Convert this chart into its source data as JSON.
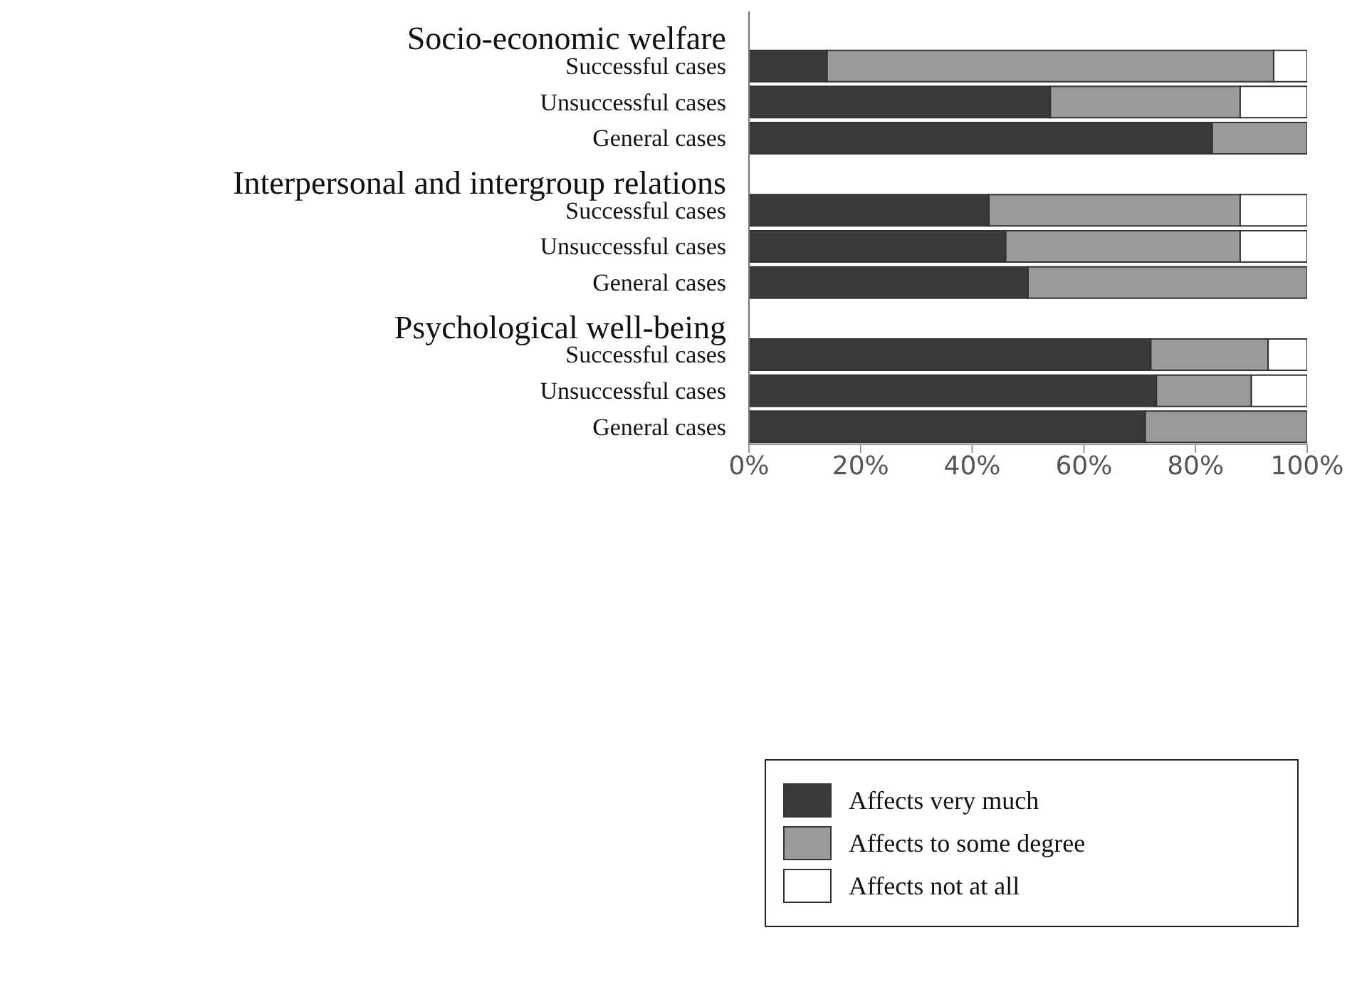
{
  "chart_data": {
    "type": "bar",
    "orientation": "horizontal",
    "stacked": true,
    "categories": [
      "Successful cases",
      "Unsuccessful cases",
      "General cases",
      "Successful cases",
      "Unsuccessful cases",
      "General cases",
      "Successful cases",
      "Unsuccessful cases",
      "General cases"
    ],
    "annotations": [
      "Socio-economic welfare",
      "Interpersonal and intergroup relations",
      "Psychological well-being"
    ],
    "series": [
      {
        "name": "Affects very much",
        "color": "#3a3a3a",
        "values": [
          14,
          54,
          83,
          43,
          46,
          50,
          72,
          73,
          71
        ]
      },
      {
        "name": "Affects to some degree",
        "color": "#9a9a9a",
        "values": [
          80,
          34,
          17,
          45,
          42,
          50,
          21,
          17,
          29
        ]
      },
      {
        "name": "Affects not at all",
        "color": "#ffffff",
        "values": [
          6,
          12,
          0,
          12,
          12,
          0,
          7,
          10,
          0
        ]
      }
    ],
    "xlim": [
      0,
      100
    ],
    "xticks": [
      {
        "value": 0,
        "label": "0%"
      },
      {
        "value": 20,
        "label": "20%"
      },
      {
        "value": 40,
        "label": "40%"
      },
      {
        "value": 60,
        "label": "60%"
      },
      {
        "value": 80,
        "label": "80%"
      },
      {
        "value": 100,
        "label": "100%"
      }
    ],
    "grid": false,
    "legend": "bottom"
  }
}
